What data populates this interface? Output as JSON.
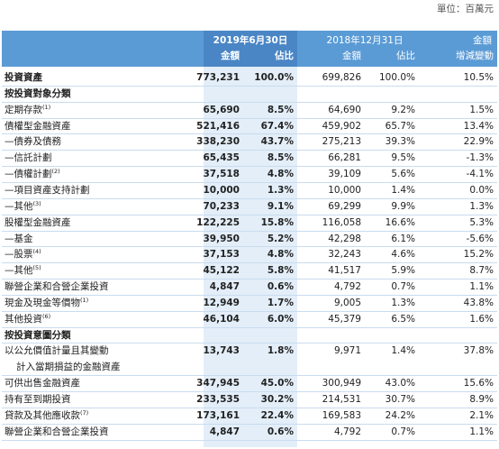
{
  "header": {
    "unit": "單位：百萬元",
    "period_current": "2019年6月30日",
    "period_prior": "2018年12月31日",
    "change_top": "金額",
    "columns": [
      "金額",
      "佔比",
      "金額",
      "佔比",
      "增減變動"
    ]
  },
  "table": {
    "rows": [
      {
        "label": "投資資產",
        "bold": true,
        "values": [
          "773,231",
          "100.0%",
          "699,826",
          "100.0%",
          "10.5%"
        ]
      },
      {
        "label": "按投資對象分類",
        "bold": true
      },
      {
        "label": "定期存款",
        "note": "(1)",
        "values": [
          "65,690",
          "8.5%",
          "64,690",
          "9.2%",
          "1.5%"
        ]
      },
      {
        "label": "債權型金融資產",
        "values": [
          "521,416",
          "67.4%",
          "459,902",
          "65.7%",
          "13.4%"
        ]
      },
      {
        "label": "—債券及債務",
        "values": [
          "338,230",
          "43.7%",
          "275,213",
          "39.3%",
          "22.9%"
        ]
      },
      {
        "label": "—信託計劃",
        "values": [
          "65,435",
          "8.5%",
          "66,281",
          "9.5%",
          "-1.3%"
        ]
      },
      {
        "label": "—債權計劃",
        "note": "(2)",
        "values": [
          "37,518",
          "4.8%",
          "39,109",
          "5.6%",
          "-4.1%"
        ]
      },
      {
        "label": "—項目資產支持計劃",
        "values": [
          "10,000",
          "1.3%",
          "10,000",
          "1.4%",
          "0.0%"
        ]
      },
      {
        "label": "—其他",
        "note": "(3)",
        "values": [
          "70,233",
          "9.1%",
          "69,299",
          "9.9%",
          "1.3%"
        ]
      },
      {
        "label": "股權型金融資產",
        "values": [
          "122,225",
          "15.8%",
          "116,058",
          "16.6%",
          "5.3%"
        ]
      },
      {
        "label": "—基金",
        "values": [
          "39,950",
          "5.2%",
          "42,298",
          "6.1%",
          "-5.6%"
        ]
      },
      {
        "label": "—股票",
        "note": "(4)",
        "values": [
          "37,153",
          "4.8%",
          "32,243",
          "4.6%",
          "15.2%"
        ]
      },
      {
        "label": "—其他",
        "note": "(5)",
        "values": [
          "45,122",
          "5.8%",
          "41,517",
          "5.9%",
          "8.7%"
        ]
      },
      {
        "label": "聯營企業和合營企業投資",
        "values": [
          "4,847",
          "0.6%",
          "4,792",
          "0.7%",
          "1.1%"
        ]
      },
      {
        "label": "現金及現金等價物",
        "note": "(1)",
        "values": [
          "12,949",
          "1.7%",
          "9,005",
          "1.3%",
          "43.8%"
        ]
      },
      {
        "label": "其他投資",
        "note": "(6)",
        "values": [
          "46,104",
          "6.0%",
          "45,379",
          "6.5%",
          "1.6%"
        ]
      },
      {
        "label": "按投資意圖分類",
        "bold": true
      },
      {
        "label": "以公允價值計量且其變動",
        "label2": "計入當期損益的金融資產",
        "values": [
          "13,743",
          "1.8%",
          "9,971",
          "1.4%",
          "37.8%"
        ]
      },
      {
        "label": "可供出售金融資產",
        "values": [
          "347,945",
          "45.0%",
          "300,949",
          "43.0%",
          "15.6%"
        ]
      },
      {
        "label": "持有至到期投資",
        "values": [
          "233,535",
          "30.2%",
          "214,531",
          "30.7%",
          "8.9%"
        ]
      },
      {
        "label": "貸款及其他應收款",
        "note": "(7)",
        "values": [
          "173,161",
          "22.4%",
          "169,583",
          "24.2%",
          "2.1%"
        ]
      },
      {
        "label": "聯營企業和合營企業投資",
        "values": [
          "4,847",
          "0.6%",
          "4,792",
          "0.7%",
          "1.1%"
        ]
      }
    ]
  }
}
